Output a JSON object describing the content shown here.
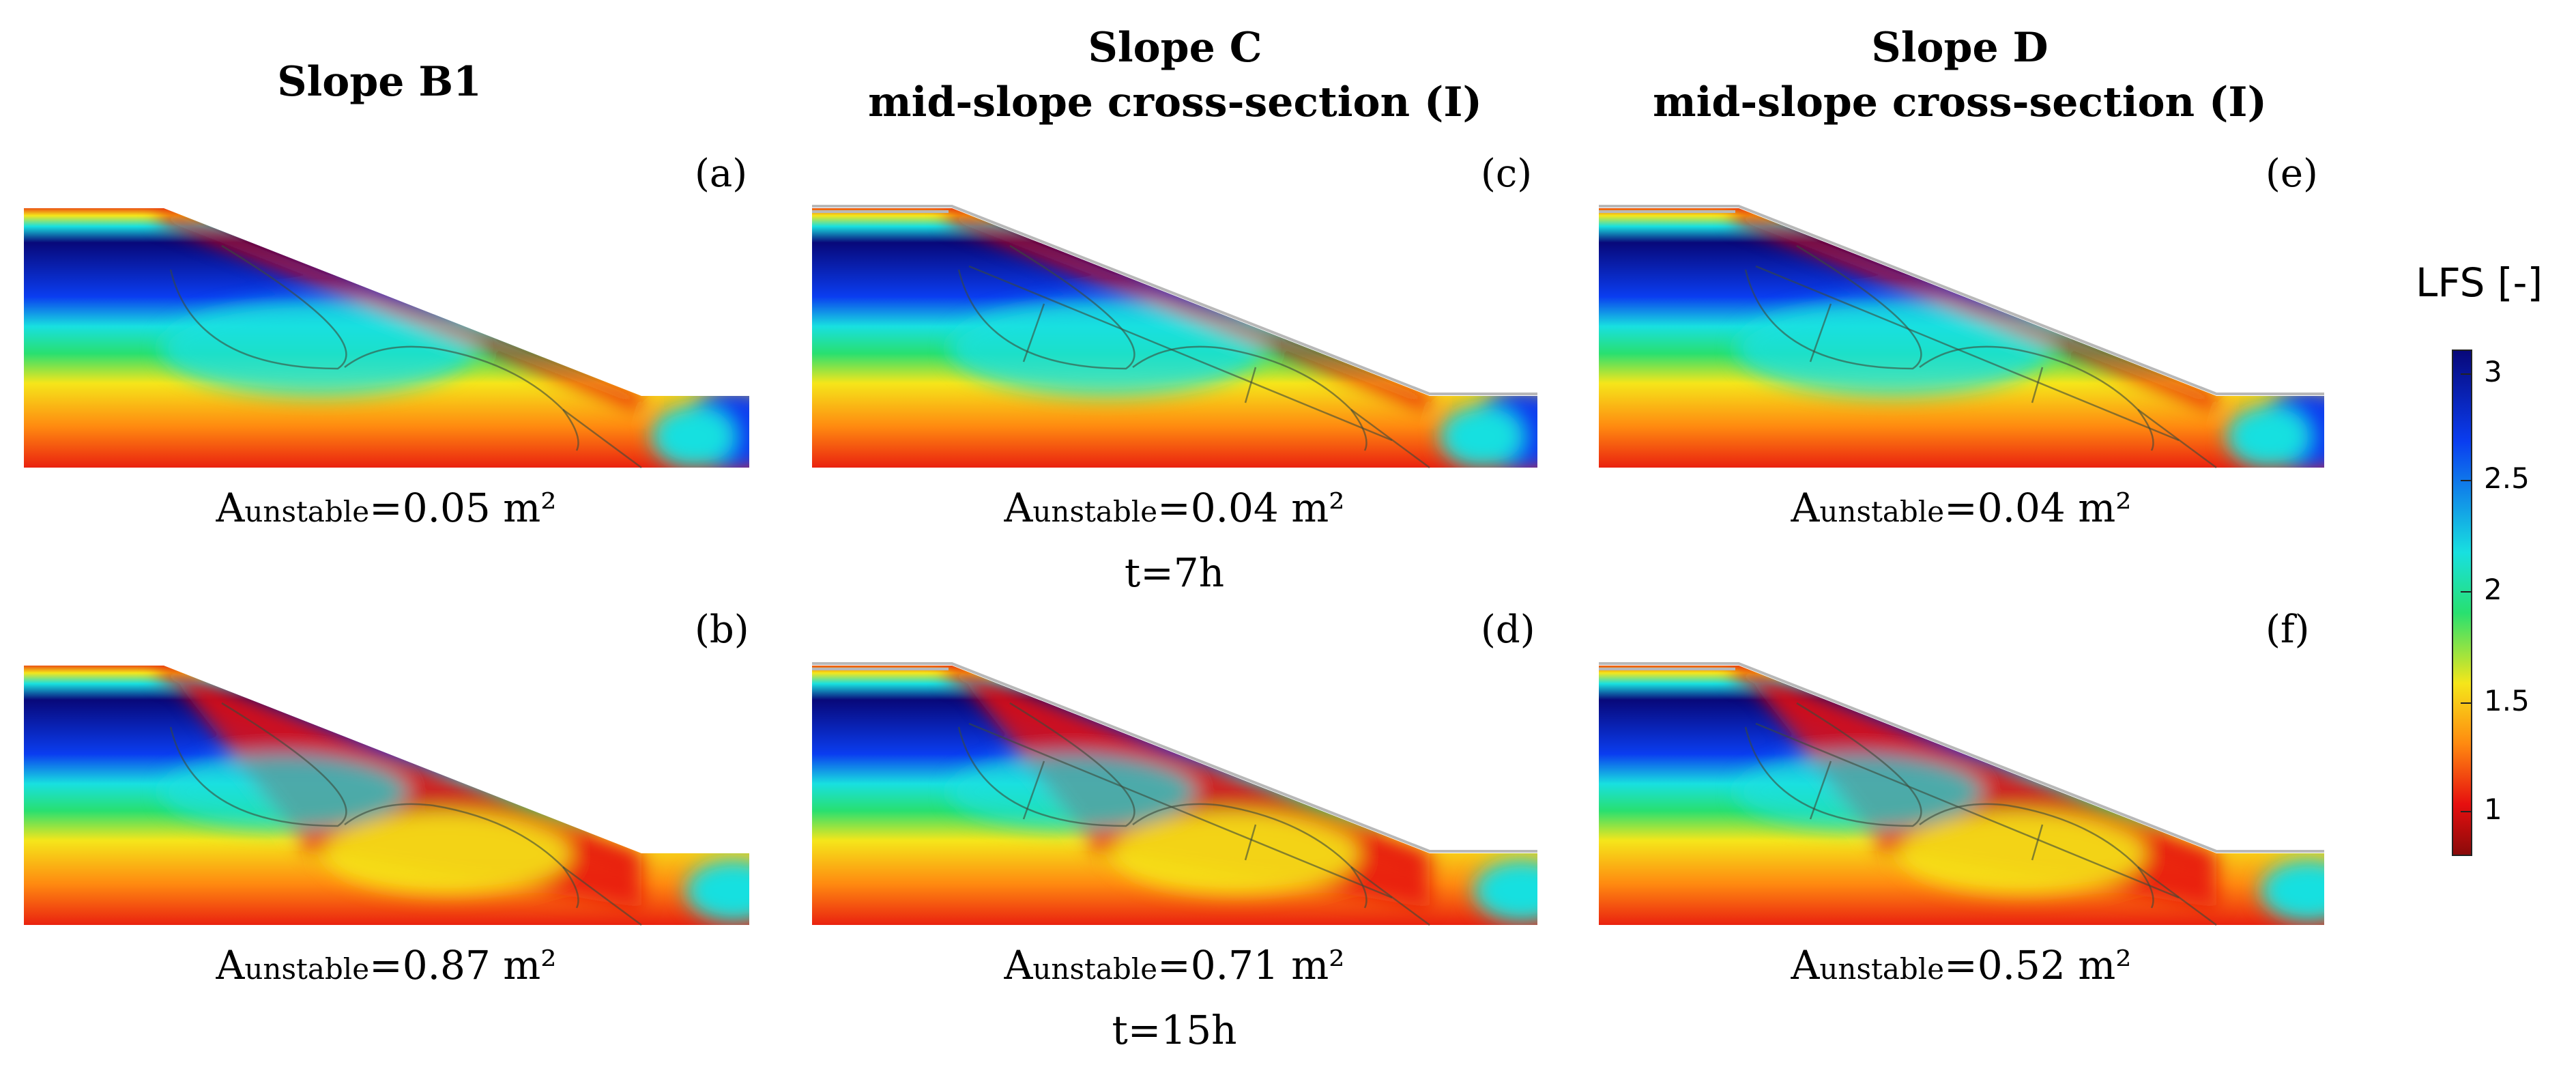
{
  "columns": [
    {
      "title_line1": "Slope B1",
      "title_line2": ""
    },
    {
      "title_line1": "Slope C",
      "title_line2": "mid-slope cross-section (I)"
    },
    {
      "title_line1": "Slope D",
      "title_line2": "mid-slope cross-section (I)"
    }
  ],
  "panels": {
    "a": {
      "label": "(a)",
      "area_prefix": "A",
      "area_sub": "unstable",
      "area_value": "=0.05 m²"
    },
    "b": {
      "label": "(b)",
      "area_prefix": "A",
      "area_sub": "unstable",
      "area_value": "=0.87 m²"
    },
    "c": {
      "label": "(c)",
      "area_prefix": "A",
      "area_sub": "unstable",
      "area_value": "=0.04 m²"
    },
    "d": {
      "label": "(d)",
      "area_prefix": "A",
      "area_sub": "unstable",
      "area_value": "=0.71 m²"
    },
    "e": {
      "label": "(e)",
      "area_prefix": "A",
      "area_sub": "unstable",
      "area_value": "=0.04 m²"
    },
    "f": {
      "label": "(f)",
      "area_prefix": "A",
      "area_sub": "unstable",
      "area_value": "=0.52 m²"
    }
  },
  "times": {
    "top": "t=7h",
    "bottom": "t=15h"
  },
  "colorbar": {
    "title": "LFS [-]",
    "ticks": [
      "3",
      "2.5",
      "2",
      "1.5",
      "1"
    ],
    "colors": {
      "max": "#08087a",
      "blue": "#0a3df0",
      "cyan": "#18e0e0",
      "green": "#28e070",
      "yellow": "#f5e61a",
      "orange": "#ff8a10",
      "red": "#e60f0f",
      "min": "#8a0a0a"
    }
  }
}
